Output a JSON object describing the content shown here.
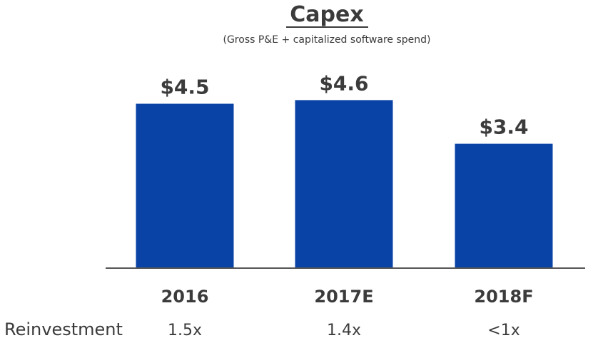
{
  "chart_data": {
    "type": "bar",
    "title": "Capex",
    "subtitle": "(Gross P&E + capitalized software spend)",
    "categories": [
      "2016",
      "2017E",
      "2018F"
    ],
    "values": [
      4.5,
      4.6,
      3.4
    ],
    "value_labels": [
      "$4.5",
      "$4.6",
      "$3.4"
    ],
    "bar_color": "#0a43a6",
    "ylim": [
      0,
      5.0
    ],
    "grid": false,
    "reinvestment": {
      "label": "Reinvestment",
      "values": [
        "1.5x",
        "1.4x",
        "<1x"
      ]
    }
  }
}
